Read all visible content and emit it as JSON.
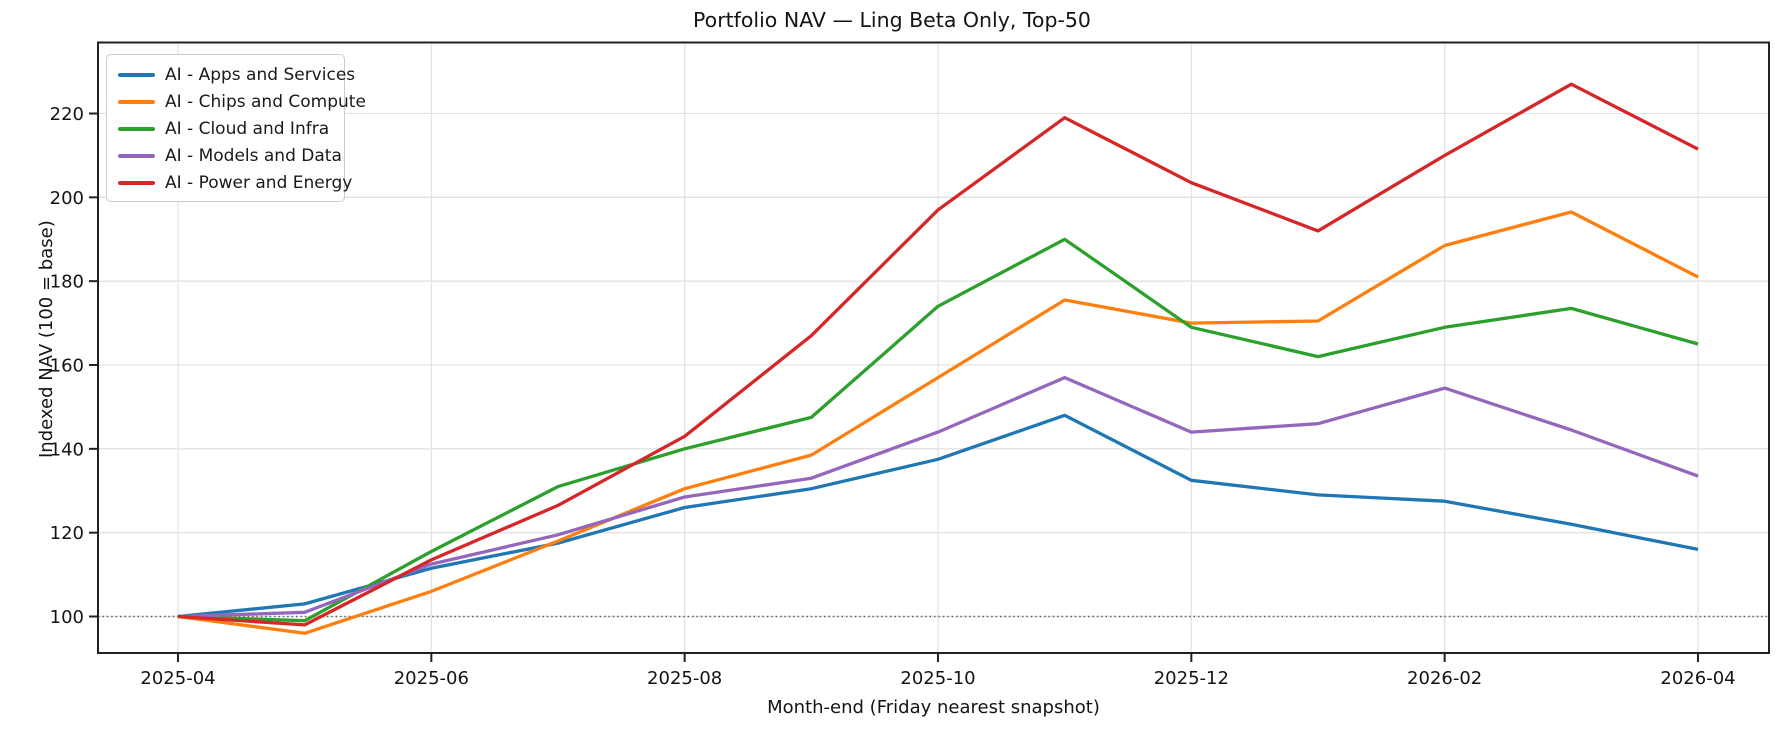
{
  "title": "Portfolio NAV — Ling Beta Only, Top-50",
  "chart_data": {
    "type": "line",
    "title": "Portfolio NAV — Ling Beta Only, Top-50",
    "xlabel": "Month-end (Friday nearest snapshot)",
    "ylabel": "Indexed NAV (100 = base)",
    "x_categories": [
      "2025-04",
      "2025-05",
      "2025-06",
      "2025-07",
      "2025-08",
      "2025-09",
      "2025-10",
      "2025-11",
      "2025-12",
      "2026-01",
      "2026-02",
      "2026-03",
      "2026-04"
    ],
    "x_tick_labels": [
      "2025-04",
      "2025-06",
      "2025-08",
      "2025-10",
      "2025-12",
      "2026-02",
      "2026-04"
    ],
    "y_ticks": [
      100,
      120,
      140,
      160,
      180,
      200,
      220
    ],
    "ylim": [
      91,
      237
    ],
    "grid": true,
    "legend_position": "upper left",
    "reference_line": {
      "y": 100,
      "style": "dotted",
      "color": "#606060"
    },
    "series": [
      {
        "name": "AI - Apps and Services",
        "color": "#1f77b4",
        "values": [
          100,
          103,
          111.5,
          117.5,
          126,
          130.5,
          137.5,
          148,
          132.5,
          129,
          127.5,
          122,
          116
        ]
      },
      {
        "name": "AI - Chips and Compute",
        "color": "#ff7f0e",
        "values": [
          100,
          96,
          106,
          118,
          130.5,
          138.5,
          157,
          175.5,
          170,
          170.5,
          188.5,
          196.5,
          181
        ]
      },
      {
        "name": "AI - Cloud and Infra",
        "color": "#2ca02c",
        "values": [
          100,
          99,
          115.5,
          131,
          140,
          147.5,
          174,
          190,
          169,
          162,
          169,
          173.5,
          165
        ]
      },
      {
        "name": "AI - Models and Data",
        "color": "#9467bd",
        "values": [
          100,
          101,
          112.5,
          119.5,
          128.5,
          133,
          144,
          157,
          144,
          146,
          154.5,
          144.5,
          133.5
        ]
      },
      {
        "name": "AI - Power and Energy",
        "color": "#d62728",
        "values": [
          100,
          98,
          113.5,
          126.5,
          143,
          167,
          197,
          219,
          203.5,
          192,
          210,
          227,
          211.5
        ]
      }
    ]
  }
}
